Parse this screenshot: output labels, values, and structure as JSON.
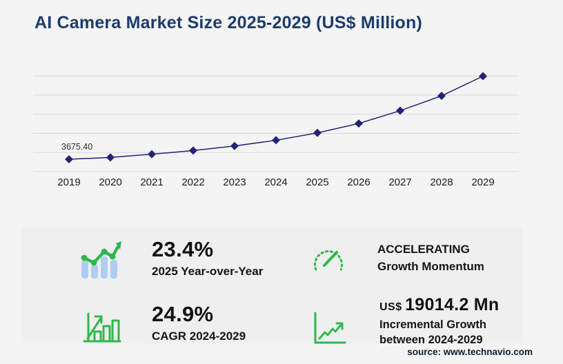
{
  "header": {
    "title": "AI Camera Market Size 2025-2029 (US$ Million)"
  },
  "chart_data": {
    "type": "line",
    "title": "AI Camera Market Size 2025-2029 (US$ Million)",
    "categories": [
      "2019",
      "2020",
      "2021",
      "2022",
      "2023",
      "2024",
      "2025",
      "2026",
      "2027",
      "2028",
      "2029"
    ],
    "series": [
      {
        "name": "AI Camera Market Size (US$ Million)",
        "values": [
          3675.4,
          4230,
          5180,
          6260,
          7620,
          9322.6,
          11504.1,
          14300,
          18100,
          22500,
          28336.8
        ]
      }
    ],
    "point_label": {
      "index": 0,
      "text": "3675.40"
    },
    "ylim": [
      0,
      28400
    ],
    "gridline_count": 6,
    "grid": "horizontal",
    "legend": "none",
    "marker": "diamond",
    "xlabel": "",
    "ylabel": ""
  },
  "stats": {
    "yoy": {
      "value": "23.4%",
      "label": "2025 Year-over-Year"
    },
    "momentum": {
      "value": "ACCELERATING",
      "label": "Growth Momentum"
    },
    "cagr": {
      "value": "24.9%",
      "label": "CAGR 2024-2029"
    },
    "incremental": {
      "currency": "US$",
      "value": "19014.2 Mn",
      "label_line1": "Incremental Growth",
      "label_line2": "between 2024-2029"
    }
  },
  "footer": {
    "source": "source: www.technavio.com"
  },
  "colors": {
    "page-bg": "#f4f4f5",
    "panel-bg": "#efeff0",
    "title-navy": "#1d3c6b",
    "chart-line": "#232274",
    "grid": "#d9d9da",
    "text-dark": "#1a1a1a",
    "green": "#2db84c",
    "light-blue": "#aecdf1",
    "source-navy": "#101c33"
  }
}
